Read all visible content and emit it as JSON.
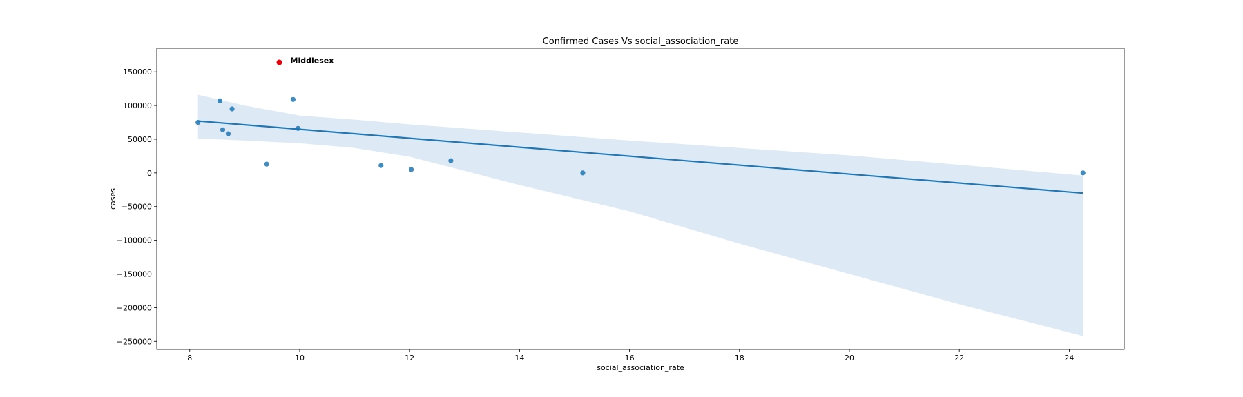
{
  "chart_data": {
    "type": "scatter",
    "title": "Confirmed Cases Vs social_association_rate",
    "xlabel": "social_association_rate",
    "ylabel": "cases",
    "xlim": [
      7.4,
      25.0
    ],
    "ylim": [
      -262000,
      185000
    ],
    "xticks": [
      8,
      10,
      12,
      14,
      16,
      18,
      20,
      22,
      24
    ],
    "yticks": [
      150000,
      100000,
      50000,
      0,
      -50000,
      -100000,
      -150000,
      -200000,
      -250000
    ],
    "ytick_labels": [
      "150000",
      "100000",
      "50000",
      "0",
      "−50000",
      "−100000",
      "−150000",
      "−200000",
      "−250000"
    ],
    "grid": false,
    "series": [
      {
        "points": [
          {
            "x": 8.15,
            "y": 75000
          },
          {
            "x": 8.55,
            "y": 107000
          },
          {
            "x": 8.6,
            "y": 64000
          },
          {
            "x": 8.7,
            "y": 58000
          },
          {
            "x": 8.77,
            "y": 95000
          },
          {
            "x": 9.4,
            "y": 13000
          },
          {
            "x": 9.88,
            "y": 109000
          },
          {
            "x": 9.97,
            "y": 66000
          },
          {
            "x": 11.48,
            "y": 11000
          },
          {
            "x": 12.03,
            "y": 5000
          },
          {
            "x": 12.75,
            "y": 18000
          },
          {
            "x": 15.15,
            "y": 0
          },
          {
            "x": 24.25,
            "y": 0
          }
        ],
        "color": "#1f77b4"
      }
    ],
    "highlight": {
      "label": "Middlesex",
      "x": 9.63,
      "y": 164000,
      "color": "#e8000b"
    },
    "regression": {
      "line": [
        {
          "x": 8.15,
          "y": 77000
        },
        {
          "x": 24.25,
          "y": -30000
        }
      ],
      "color": "#1f77b4",
      "band_color": "#c6dbef",
      "ci_upper": [
        {
          "x": 8.15,
          "y": 116000
        },
        {
          "x": 9.0,
          "y": 100000
        },
        {
          "x": 10.0,
          "y": 85000
        },
        {
          "x": 11.0,
          "y": 79000
        },
        {
          "x": 12.0,
          "y": 72000
        },
        {
          "x": 14.0,
          "y": 60000
        },
        {
          "x": 16.0,
          "y": 48000
        },
        {
          "x": 18.0,
          "y": 37000
        },
        {
          "x": 20.0,
          "y": 26000
        },
        {
          "x": 22.0,
          "y": 12000
        },
        {
          "x": 24.25,
          "y": -4000
        }
      ],
      "ci_lower": [
        {
          "x": 8.15,
          "y": 51000
        },
        {
          "x": 9.0,
          "y": 48000
        },
        {
          "x": 10.0,
          "y": 44000
        },
        {
          "x": 11.0,
          "y": 37000
        },
        {
          "x": 12.0,
          "y": 24000
        },
        {
          "x": 14.0,
          "y": -18000
        },
        {
          "x": 16.0,
          "y": -57000
        },
        {
          "x": 18.0,
          "y": -105000
        },
        {
          "x": 20.0,
          "y": -150000
        },
        {
          "x": 22.0,
          "y": -195000
        },
        {
          "x": 24.25,
          "y": -242000
        }
      ]
    }
  }
}
